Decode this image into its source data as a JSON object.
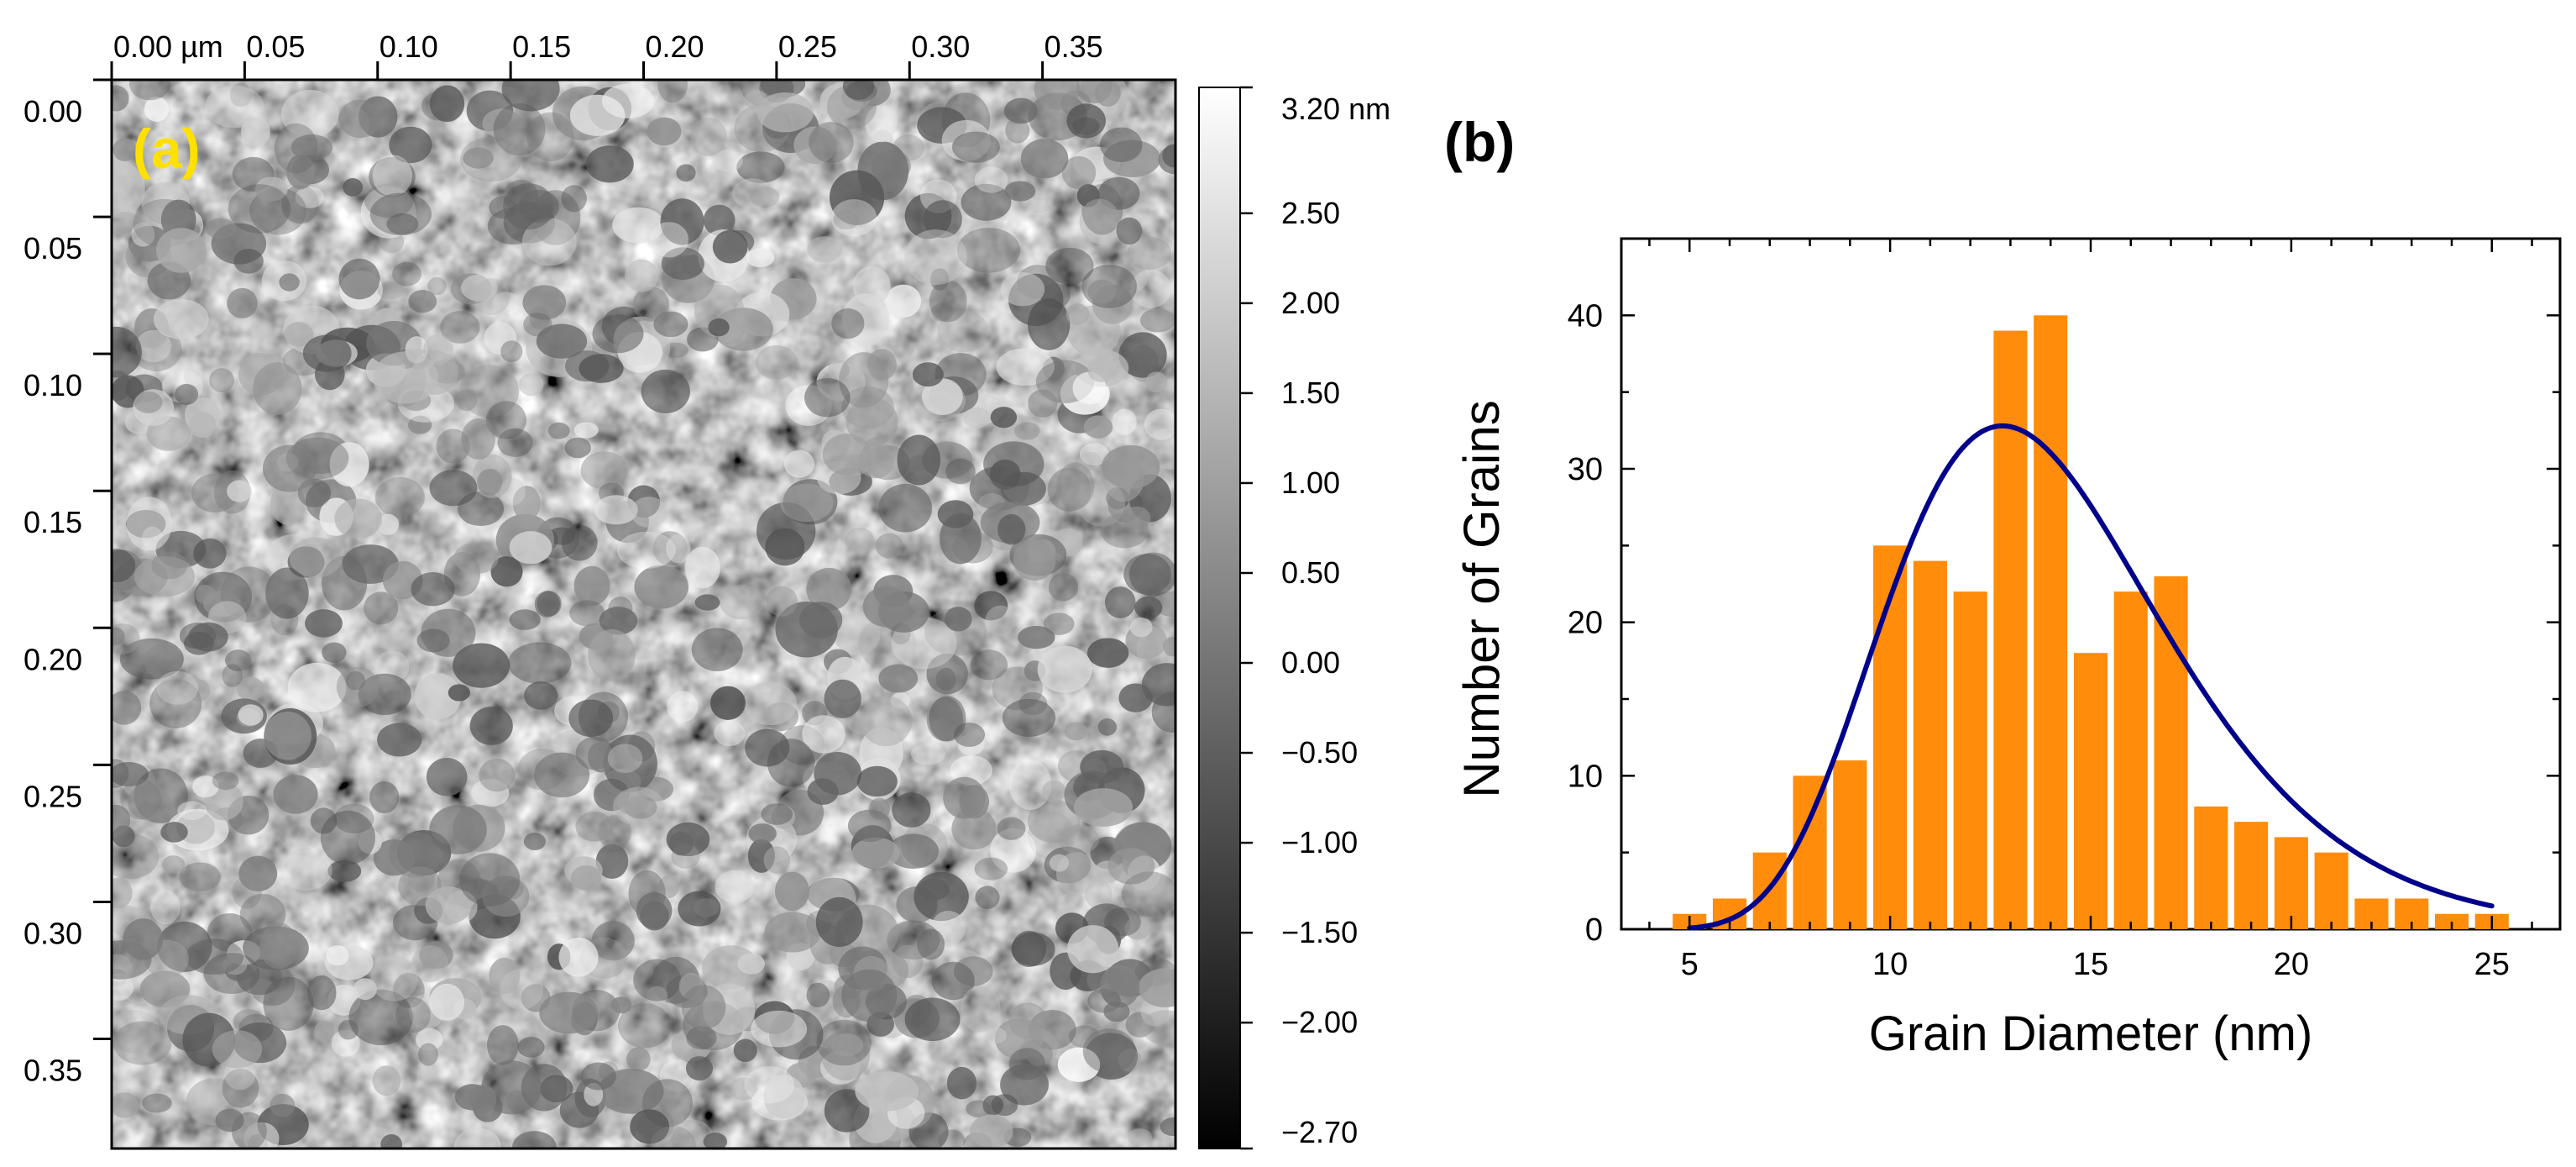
{
  "chart_data": [
    {
      "type": "heatmap",
      "panel_label": "(a)",
      "panel_label_color": "#FFE000",
      "description": "AFM topography image, 0.4 um x 0.4 um scan",
      "x_ticks": [
        "0.00 µm",
        "0.05",
        "0.10",
        "0.15",
        "0.20",
        "0.25",
        "0.30",
        "0.35"
      ],
      "x_tick_values": [
        0.0,
        0.05,
        0.1,
        0.15,
        0.2,
        0.25,
        0.3,
        0.35
      ],
      "y_ticks": [
        "0.00",
        "0.05",
        "0.10",
        "0.15",
        "0.20",
        "0.25",
        "0.30",
        "0.35"
      ],
      "y_tick_values": [
        0.0,
        0.05,
        0.1,
        0.15,
        0.2,
        0.25,
        0.3,
        0.35
      ],
      "xlim": [
        0.0,
        0.4
      ],
      "ylim": [
        0.0,
        0.39
      ],
      "colorbar": {
        "labels": [
          "3.20 nm",
          "2.50",
          "2.00",
          "1.50",
          "1.00",
          "0.50",
          "0.00",
          "−0.50",
          "−1.00",
          "−1.50",
          "−2.00",
          "−2.70"
        ],
        "values": [
          3.2,
          2.5,
          2.0,
          1.5,
          1.0,
          0.5,
          0.0,
          -0.5,
          -1.0,
          -1.5,
          -2.0,
          -2.7
        ],
        "range": [
          -2.7,
          3.2
        ],
        "colormap": [
          "#000000",
          "#ffffff"
        ]
      }
    },
    {
      "type": "bar",
      "panel_label": "(b)",
      "title": "",
      "xlabel": "Grain Diameter (nm)",
      "ylabel": "Number of Grains",
      "x": [
        5,
        6,
        7,
        8,
        9,
        10,
        11,
        12,
        13,
        14,
        15,
        16,
        17,
        18,
        19,
        20,
        21,
        22,
        23,
        24,
        25
      ],
      "values": [
        1,
        2,
        5,
        10,
        11,
        25,
        24,
        22,
        39,
        40,
        18,
        22,
        23,
        8,
        7,
        6,
        5,
        2,
        2,
        1,
        1
      ],
      "xlim": [
        3.3,
        26.7
      ],
      "ylim": [
        0,
        45
      ],
      "x_ticks": [
        5,
        10,
        15,
        20,
        25
      ],
      "y_ticks": [
        0,
        10,
        20,
        30,
        40
      ],
      "bar_color": "#FF8C0A",
      "fit": {
        "type": "lognormal",
        "color": "#00008B",
        "amplitude": 32.8,
        "peak": 12.8,
        "sigma": 0.27,
        "x_range": [
          5,
          25
        ]
      }
    }
  ]
}
